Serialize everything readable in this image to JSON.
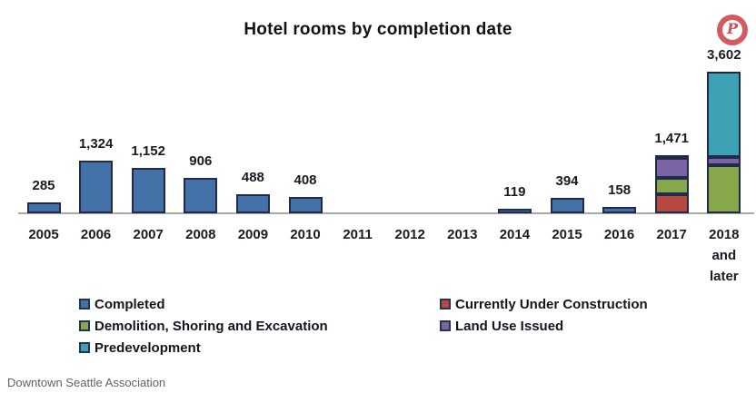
{
  "header": {
    "title": "Hotel rooms by completion date"
  },
  "pinterest": {
    "label": "P",
    "badge_color": "#d25b61"
  },
  "source": {
    "text": "Downtown Seattle Association"
  },
  "legend": {
    "columns": [
      {
        "items": [
          {
            "label": "Completed",
            "color": "#4472a8"
          },
          {
            "label": "Demolition, Shoring and Excavation",
            "color": "#87a84a"
          },
          {
            "label": "Predevelopment",
            "color": "#3ea2b5"
          }
        ]
      },
      {
        "items": [
          {
            "label": "Currently Under Construction",
            "color": "#b5493f"
          },
          {
            "label": "Land Use Issued",
            "color": "#7a64a6"
          }
        ]
      }
    ]
  },
  "chart_data": {
    "type": "bar",
    "stacked": true,
    "title": "Hotel rooms by completion date",
    "xlabel": "",
    "ylabel": "",
    "ylim": [
      0,
      3700
    ],
    "grid": false,
    "legend_position": "bottom-two-columns",
    "categories": [
      "2005",
      "2006",
      "2007",
      "2008",
      "2009",
      "2010",
      "2011",
      "2012",
      "2013",
      "2014",
      "2015",
      "2016",
      "2017",
      "2018 and later"
    ],
    "x_labels": [
      [
        "2005"
      ],
      [
        "2006"
      ],
      [
        "2007"
      ],
      [
        "2008"
      ],
      [
        "2009"
      ],
      [
        "2010"
      ],
      [
        "2011"
      ],
      [
        "2012"
      ],
      [
        "2013"
      ],
      [
        "2014"
      ],
      [
        "2015"
      ],
      [
        "2016"
      ],
      [
        "2017"
      ],
      [
        "2018",
        "and",
        "later"
      ]
    ],
    "series": [
      {
        "name": "Completed",
        "color": "#4472a8",
        "values": [
          285,
          1324,
          1152,
          906,
          488,
          408,
          0,
          0,
          0,
          119,
          394,
          158,
          0,
          0
        ]
      },
      {
        "name": "Currently Under Construction",
        "color": "#b5493f",
        "values": [
          0,
          0,
          0,
          0,
          0,
          0,
          0,
          0,
          0,
          0,
          0,
          0,
          485,
          0
        ]
      },
      {
        "name": "Demolition, Shoring and Excavation",
        "color": "#87a84a",
        "values": [
          0,
          0,
          0,
          0,
          0,
          0,
          0,
          0,
          0,
          0,
          0,
          0,
          415,
          1230
        ]
      },
      {
        "name": "Land Use Issued",
        "color": "#7a64a6",
        "values": [
          0,
          0,
          0,
          0,
          0,
          0,
          0,
          0,
          0,
          0,
          0,
          0,
          508,
          215
        ]
      },
      {
        "name": "Predevelopment",
        "color": "#3ea2b5",
        "values": [
          0,
          0,
          0,
          0,
          0,
          0,
          0,
          0,
          0,
          0,
          0,
          0,
          63,
          2157
        ]
      }
    ],
    "totals_labels": [
      "285",
      "1,324",
      "1,152",
      "906",
      "488",
      "408",
      "",
      "",
      "",
      "119",
      "394",
      "158",
      "1,471",
      "3,602"
    ]
  }
}
